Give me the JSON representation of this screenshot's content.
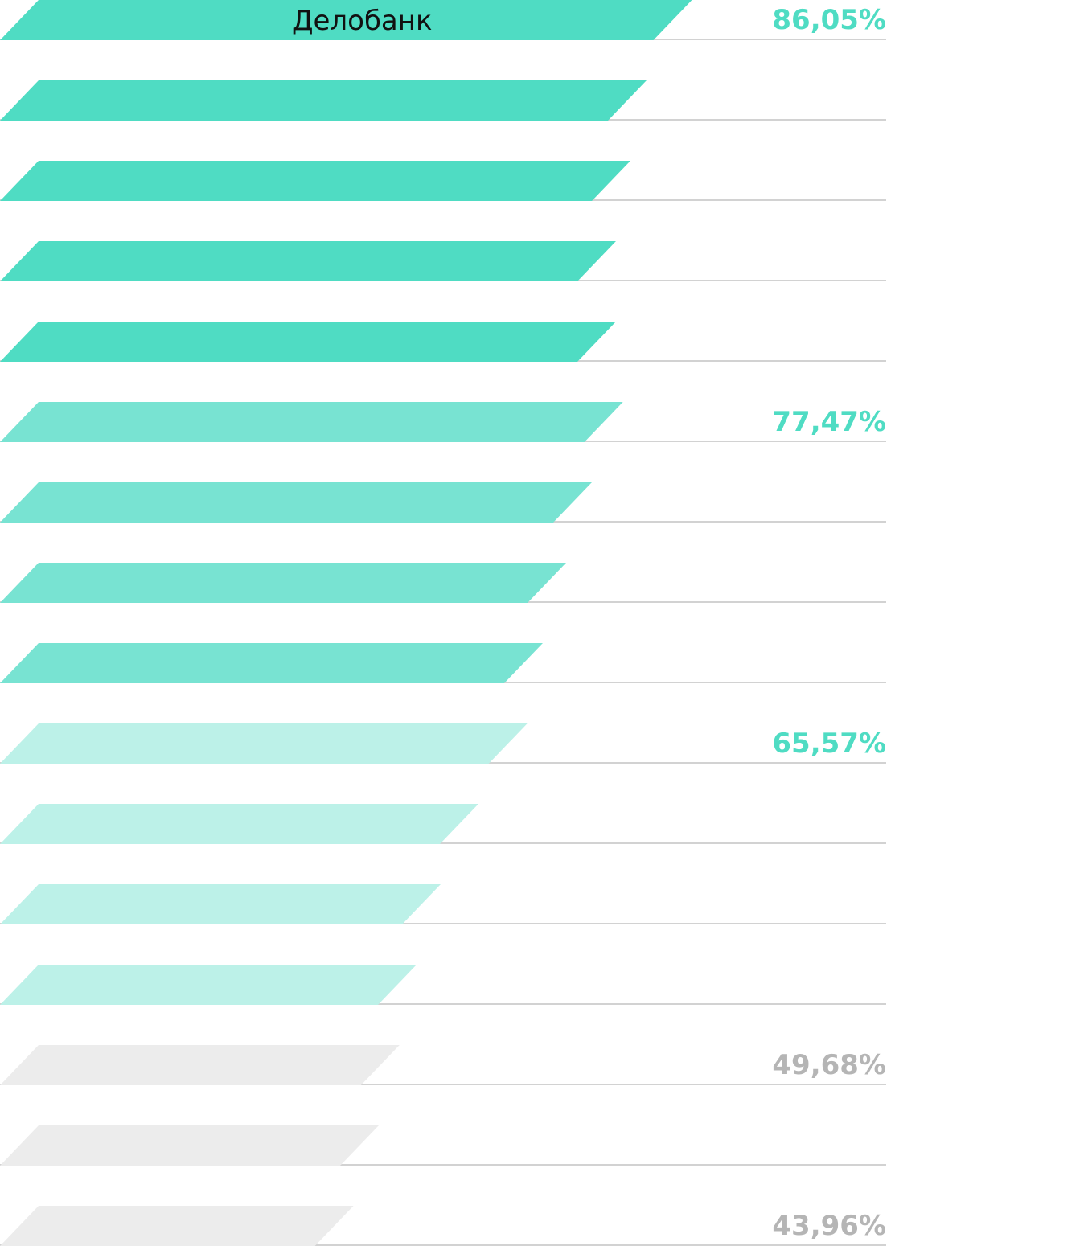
{
  "chart_data": {
    "type": "bar",
    "orientation": "horizontal",
    "title": "",
    "xlabel": "",
    "ylabel": "",
    "categories": [
      "Делобанк",
      "",
      "",
      "",
      "",
      "",
      "",
      "",
      "",
      "",
      "",
      "",
      "",
      "",
      "",
      ""
    ],
    "values": [
      86.05,
      80.4,
      78.4,
      76.6,
      76.6,
      77.47,
      73.6,
      70.4,
      67.5,
      65.57,
      59.5,
      54.8,
      51.8,
      49.68,
      47.1,
      43.96
    ],
    "value_labels": [
      "86,05%",
      "",
      "",
      "",
      "",
      "77,47%",
      "",
      "",
      "",
      "65,57%",
      "",
      "",
      "",
      "49,68%",
      "",
      "43,96%"
    ],
    "tiers": [
      1,
      1,
      1,
      1,
      1,
      2,
      2,
      2,
      2,
      3,
      3,
      3,
      3,
      4,
      4,
      4
    ],
    "grid": true,
    "legend": "none"
  },
  "colors": {
    "tier_1": "#4fdcc3",
    "tier_2": "#78e3d2",
    "tier_3": "#bcf1e8",
    "tier_4": "#ececec",
    "label_teal": "#4fdcc3",
    "label_gray": "#b5b5b5",
    "baseline": "#d2d2d2"
  }
}
